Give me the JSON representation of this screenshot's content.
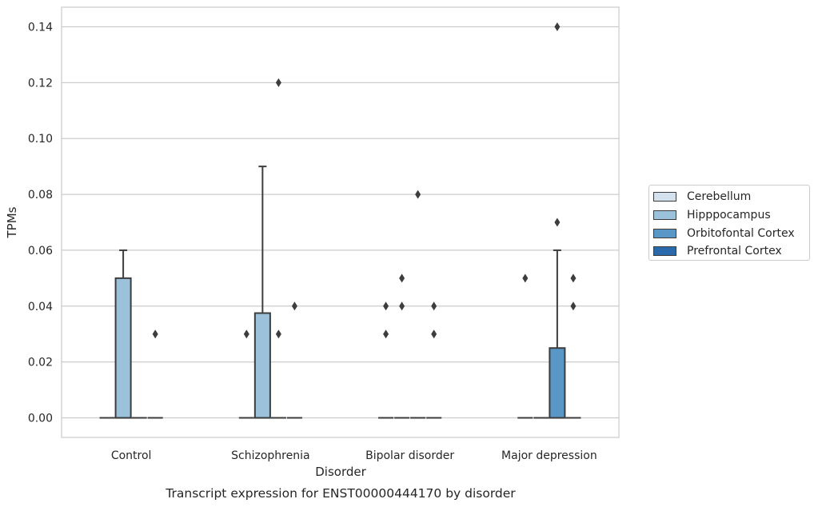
{
  "chart_data": {
    "type": "box",
    "title": "Transcript expression for ENST00000444170 by disorder",
    "xlabel": "Disorder",
    "ylabel": "TPMs",
    "ylim": [
      -0.007,
      0.147
    ],
    "yticks": [
      "0.00",
      "0.02",
      "0.04",
      "0.06",
      "0.08",
      "0.10",
      "0.12",
      "0.14"
    ],
    "ytick_values": [
      0,
      0.02,
      0.04,
      0.06,
      0.08,
      0.1,
      0.12,
      0.14
    ],
    "categories": [
      "Control",
      "Schizophrenia",
      "Bipolar disorder",
      "Major depression"
    ],
    "grid": "horizontal",
    "legend_position": "right",
    "series": [
      {
        "name": "Cerebellum",
        "color": "#d4e2ef",
        "boxes": [
          {
            "q1": 0,
            "median": 0,
            "q3": 0,
            "whisker_low": 0,
            "whisker_high": 0,
            "outliers": []
          },
          {
            "q1": 0,
            "median": 0,
            "q3": 0,
            "whisker_low": 0,
            "whisker_high": 0,
            "outliers": [
              0.03
            ]
          },
          {
            "q1": 0,
            "median": 0,
            "q3": 0,
            "whisker_low": 0,
            "whisker_high": 0,
            "outliers": [
              0.03,
              0.04
            ]
          },
          {
            "q1": 0,
            "median": 0,
            "q3": 0,
            "whisker_low": 0,
            "whisker_high": 0,
            "outliers": [
              0.05
            ]
          }
        ]
      },
      {
        "name": "Hipppocampus",
        "color": "#9bc2da",
        "boxes": [
          {
            "q1": 0,
            "median": 0,
            "q3": 0.05,
            "whisker_low": 0,
            "whisker_high": 0.06,
            "outliers": []
          },
          {
            "q1": 0,
            "median": 0,
            "q3": 0.0375,
            "whisker_low": 0,
            "whisker_high": 0.09,
            "outliers": []
          },
          {
            "q1": 0,
            "median": 0,
            "q3": 0,
            "whisker_low": 0,
            "whisker_high": 0,
            "outliers": [
              0.04,
              0.05
            ]
          },
          {
            "q1": 0,
            "median": 0,
            "q3": 0,
            "whisker_low": 0,
            "whisker_high": 0,
            "outliers": []
          }
        ]
      },
      {
        "name": "Orbitofontal Cortex",
        "color": "#5897c6",
        "boxes": [
          {
            "q1": 0,
            "median": 0,
            "q3": 0,
            "whisker_low": 0,
            "whisker_high": 0,
            "outliers": []
          },
          {
            "q1": 0,
            "median": 0,
            "q3": 0,
            "whisker_low": 0,
            "whisker_high": 0,
            "outliers": [
              0.03,
              0.12
            ]
          },
          {
            "q1": 0,
            "median": 0,
            "q3": 0,
            "whisker_low": 0,
            "whisker_high": 0,
            "outliers": [
              0.08
            ]
          },
          {
            "q1": 0,
            "median": 0,
            "q3": 0.025,
            "whisker_low": 0,
            "whisker_high": 0.06,
            "outliers": [
              0.07,
              0.14
            ]
          }
        ]
      },
      {
        "name": "Prefrontal Cortex",
        "color": "#2a6aaa",
        "boxes": [
          {
            "q1": 0,
            "median": 0,
            "q3": 0,
            "whisker_low": 0,
            "whisker_high": 0,
            "outliers": [
              0.03
            ]
          },
          {
            "q1": 0,
            "median": 0,
            "q3": 0,
            "whisker_low": 0,
            "whisker_high": 0,
            "outliers": [
              0.04
            ]
          },
          {
            "q1": 0,
            "median": 0,
            "q3": 0,
            "whisker_low": 0,
            "whisker_high": 0,
            "outliers": [
              0.03,
              0.04
            ]
          },
          {
            "q1": 0,
            "median": 0,
            "q3": 0,
            "whisker_low": 0,
            "whisker_high": 0,
            "outliers": [
              0.04,
              0.05
            ]
          }
        ]
      }
    ]
  }
}
